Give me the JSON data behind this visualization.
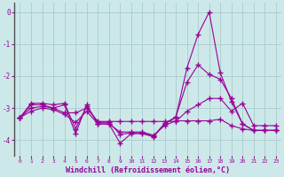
{
  "xlabel": "Windchill (Refroidissement éolien,°C)",
  "x": [
    0,
    1,
    2,
    3,
    4,
    5,
    6,
    7,
    8,
    9,
    10,
    11,
    12,
    13,
    14,
    15,
    16,
    17,
    18,
    19,
    20,
    21,
    22,
    23
  ],
  "line1": [
    -3.3,
    -2.9,
    -2.9,
    -3.0,
    -2.9,
    -3.8,
    -2.9,
    -3.5,
    -3.5,
    -4.1,
    -3.8,
    -3.8,
    -3.9,
    -3.5,
    -3.3,
    -1.75,
    -0.7,
    0.0,
    -1.9,
    -2.8,
    -3.5,
    -3.7,
    -3.7,
    -3.7
  ],
  "line2": [
    -3.3,
    -2.85,
    -2.85,
    -2.9,
    -2.85,
    -3.65,
    -2.95,
    -3.45,
    -3.45,
    -3.82,
    -3.78,
    -3.78,
    -3.88,
    -3.48,
    -3.28,
    -2.2,
    -1.65,
    -1.95,
    -2.1,
    -2.7,
    -3.5,
    -3.7,
    -3.7,
    -3.7
  ],
  "line3": [
    -3.3,
    -3.0,
    -2.95,
    -3.0,
    -3.15,
    -3.15,
    -3.0,
    -3.42,
    -3.42,
    -3.42,
    -3.42,
    -3.42,
    -3.42,
    -3.42,
    -3.42,
    -3.1,
    -2.9,
    -2.7,
    -2.7,
    -3.1,
    -2.85,
    -3.55,
    -3.55,
    -3.55
  ],
  "line4": [
    -3.3,
    -3.1,
    -3.0,
    -3.05,
    -3.2,
    -3.45,
    -3.1,
    -3.5,
    -3.5,
    -3.75,
    -3.75,
    -3.75,
    -3.85,
    -3.55,
    -3.4,
    -3.4,
    -3.4,
    -3.4,
    -3.35,
    -3.55,
    -3.65,
    -3.7,
    -3.7,
    -3.7
  ],
  "bg_color": "#cce8e8",
  "grid_color": "#aacccc",
  "line_color": "#990099",
  "marker": "+",
  "markersize": 4,
  "linewidth": 0.8,
  "ylim": [
    -4.5,
    0.3
  ],
  "yticks": [
    0,
    -1,
    -2,
    -3,
    -4
  ],
  "xlim": [
    -0.5,
    23.5
  ]
}
